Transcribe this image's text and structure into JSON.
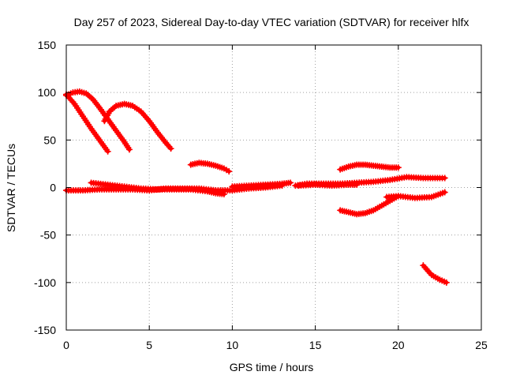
{
  "chart_data": {
    "type": "scatter",
    "title": "Day 257 of 2023, Sidereal Day-to-day VTEC variation (SDTVAR) for receiver hlfx",
    "xlabel": "GPS time / hours",
    "ylabel": "SDTVAR / TECUs",
    "xlim": [
      0,
      25
    ],
    "ylim": [
      -150,
      150
    ],
    "xticks": [
      0,
      5,
      10,
      15,
      20,
      25
    ],
    "yticks": [
      -150,
      -100,
      -50,
      0,
      50,
      100,
      150
    ],
    "grid": true,
    "color": "#ff0000",
    "series": [
      {
        "x": [
          0.0,
          0.5,
          1.0,
          1.5,
          2.0,
          2.5
        ],
        "y": [
          98,
          88,
          75,
          62,
          50,
          38
        ]
      },
      {
        "x": [
          0.0,
          0.4,
          0.8,
          1.2,
          1.6,
          2.0,
          2.5,
          3.0,
          3.5,
          3.8
        ],
        "y": [
          97,
          100,
          101,
          99,
          93,
          84,
          72,
          60,
          48,
          40
        ]
      },
      {
        "x": [
          2.3,
          2.6,
          3.0,
          3.5,
          4.0,
          4.5,
          5.0,
          5.5,
          6.0,
          6.3
        ],
        "y": [
          70,
          80,
          86,
          88,
          86,
          80,
          70,
          58,
          47,
          41
        ]
      },
      {
        "x": [
          7.5,
          8.0,
          8.5,
          9.0,
          9.5,
          9.8
        ],
        "y": [
          24,
          26,
          25,
          23,
          20,
          17
        ]
      },
      {
        "x": [
          0.0,
          1.0,
          2.0,
          3.0,
          4.0,
          5.0,
          6.0,
          7.0,
          8.0,
          9.0,
          10.0,
          11.0,
          12.0,
          13.0
        ],
        "y": [
          -3,
          -3,
          -2,
          -2,
          -2,
          -3,
          -1,
          -1,
          -1,
          -3,
          -3,
          -1,
          0,
          2
        ]
      },
      {
        "x": [
          1.5,
          2.5,
          3.5,
          4.5,
          5.5,
          6.5,
          7.5,
          8.5,
          9.0,
          9.5
        ],
        "y": [
          5,
          3,
          1,
          -1,
          -2,
          -2,
          -2,
          -4,
          -6,
          -7
        ]
      },
      {
        "x": [
          10.0,
          11.0,
          12.0,
          13.0,
          13.5
        ],
        "y": [
          1,
          2,
          3,
          4,
          5
        ]
      },
      {
        "x": [
          13.8,
          14.5,
          15.5,
          16.5,
          17.5,
          18.5,
          19.5,
          20.5,
          21.5,
          22.5,
          22.8
        ],
        "y": [
          2,
          4,
          4,
          4,
          5,
          6,
          8,
          11,
          10,
          10,
          10
        ]
      },
      {
        "x": [
          14.0,
          15.0,
          16.0,
          17.0,
          17.5
        ],
        "y": [
          2,
          3,
          2,
          3,
          3
        ]
      },
      {
        "x": [
          16.5,
          17.0,
          17.5,
          18.0,
          18.5,
          19.0,
          19.5,
          20.0
        ],
        "y": [
          19,
          22,
          24,
          24,
          23,
          22,
          21,
          21
        ]
      },
      {
        "x": [
          16.5,
          17.0,
          17.5,
          18.0,
          18.5,
          19.0,
          19.5,
          20.0
        ],
        "y": [
          -24,
          -26,
          -28,
          -27,
          -24,
          -19,
          -14,
          -9
        ]
      },
      {
        "x": [
          19.3,
          20.0,
          21.0,
          22.0,
          22.8
        ],
        "y": [
          -10,
          -9,
          -11,
          -10,
          -5
        ]
      },
      {
        "x": [
          21.5,
          22.0,
          22.5,
          22.9
        ],
        "y": [
          -82,
          -92,
          -97,
          -100
        ]
      }
    ]
  }
}
